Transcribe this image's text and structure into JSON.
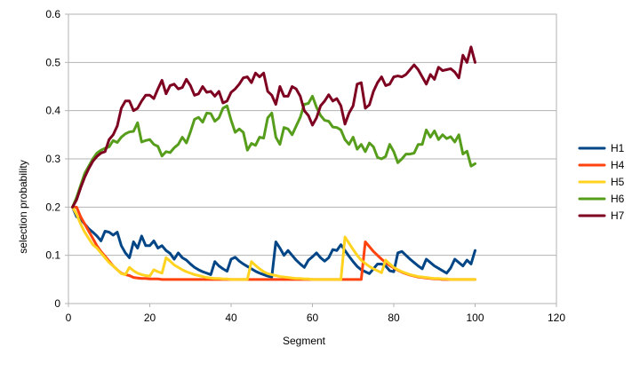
{
  "chart_data": {
    "type": "line",
    "title": "",
    "xlabel": "Segment",
    "ylabel": "selection probability",
    "xlim": [
      0,
      120
    ],
    "ylim": [
      0,
      0.6
    ],
    "xticks": [
      0,
      20,
      40,
      60,
      80,
      100,
      120
    ],
    "yticks": [
      0,
      0.1,
      0.2,
      0.3,
      0.4,
      0.5,
      0.6
    ],
    "xtick_labels": [
      "0",
      "20",
      "40",
      "60",
      "80",
      "100",
      "120"
    ],
    "ytick_labels": [
      "0",
      "0.1",
      "0.2",
      "0.3",
      "0.4",
      "0.5",
      "0.6"
    ],
    "grid": "horizontal",
    "legend_position": "right",
    "series": [
      {
        "name": "H1",
        "color": "#004586",
        "x": [
          1,
          2,
          3,
          4,
          5,
          6,
          7,
          8,
          9,
          10,
          11,
          12,
          13,
          14,
          15,
          16,
          17,
          18,
          19,
          20,
          21,
          22,
          23,
          24,
          25,
          26,
          27,
          28,
          29,
          30,
          31,
          32,
          33,
          34,
          35,
          36,
          37,
          38,
          39,
          40,
          41,
          42,
          43,
          44,
          45,
          46,
          47,
          48,
          49,
          50,
          51,
          52,
          53,
          54,
          55,
          56,
          57,
          58,
          59,
          60,
          61,
          62,
          63,
          64,
          65,
          66,
          67,
          68,
          69,
          70,
          71,
          72,
          73,
          74,
          75,
          76,
          77,
          78,
          79,
          80,
          81,
          82,
          83,
          84,
          85,
          86,
          87,
          88,
          89,
          90,
          91,
          92,
          93,
          94,
          95,
          96,
          97,
          98,
          99,
          100
        ],
        "values": [
          0.2,
          0.18,
          0.175,
          0.165,
          0.155,
          0.148,
          0.14,
          0.13,
          0.15,
          0.148,
          0.142,
          0.148,
          0.12,
          0.105,
          0.095,
          0.128,
          0.115,
          0.14,
          0.12,
          0.12,
          0.13,
          0.115,
          0.12,
          0.11,
          0.104,
          0.092,
          0.105,
          0.095,
          0.09,
          0.082,
          0.075,
          0.07,
          0.066,
          0.063,
          0.06,
          0.087,
          0.078,
          0.072,
          0.067,
          0.092,
          0.096,
          0.088,
          0.082,
          0.077,
          0.072,
          0.067,
          0.063,
          0.06,
          0.057,
          0.055,
          0.128,
          0.115,
          0.1,
          0.11,
          0.1,
          0.09,
          0.082,
          0.075,
          0.09,
          0.097,
          0.105,
          0.095,
          0.088,
          0.095,
          0.112,
          0.11,
          0.122,
          0.11,
          0.098,
          0.087,
          0.077,
          0.07,
          0.066,
          0.062,
          0.072,
          0.082,
          0.082,
          0.078,
          0.068,
          0.066,
          0.105,
          0.108,
          0.1,
          0.092,
          0.085,
          0.078,
          0.072,
          0.092,
          0.085,
          0.078,
          0.073,
          0.068,
          0.063,
          0.074,
          0.092,
          0.085,
          0.078,
          0.09,
          0.082,
          0.11
        ]
      },
      {
        "name": "H4",
        "color": "#ff420e",
        "x": [
          1,
          2,
          3,
          4,
          5,
          6,
          7,
          8,
          9,
          10,
          11,
          12,
          13,
          14,
          15,
          16,
          17,
          18,
          19,
          20,
          21,
          22,
          23,
          24,
          25,
          26,
          27,
          28,
          29,
          30,
          31,
          32,
          33,
          34,
          35,
          36,
          37,
          38,
          39,
          40,
          41,
          42,
          43,
          44,
          45,
          46,
          47,
          48,
          49,
          50,
          51,
          52,
          53,
          54,
          55,
          56,
          57,
          58,
          59,
          60,
          61,
          62,
          63,
          64,
          65,
          66,
          67,
          68,
          69,
          70,
          71,
          72,
          73,
          74,
          75,
          76,
          77,
          78,
          79,
          80,
          81,
          82,
          83,
          84,
          85,
          86,
          87,
          88,
          89,
          90,
          91,
          92,
          93,
          94,
          95,
          96,
          97,
          98,
          99,
          100
        ],
        "values": [
          0.2,
          0.2,
          0.18,
          0.165,
          0.15,
          0.135,
          0.12,
          0.108,
          0.098,
          0.088,
          0.078,
          0.07,
          0.063,
          0.06,
          0.058,
          0.054,
          0.053,
          0.052,
          0.052,
          0.051,
          0.051,
          0.051,
          0.05,
          0.05,
          0.05,
          0.05,
          0.05,
          0.05,
          0.05,
          0.05,
          0.05,
          0.05,
          0.05,
          0.05,
          0.05,
          0.05,
          0.05,
          0.05,
          0.05,
          0.05,
          0.05,
          0.05,
          0.05,
          0.05,
          0.05,
          0.05,
          0.05,
          0.05,
          0.05,
          0.05,
          0.05,
          0.05,
          0.05,
          0.05,
          0.05,
          0.05,
          0.05,
          0.05,
          0.05,
          0.05,
          0.05,
          0.05,
          0.05,
          0.05,
          0.05,
          0.05,
          0.05,
          0.05,
          0.05,
          0.05,
          0.05,
          0.05,
          0.128,
          0.118,
          0.108,
          0.1,
          0.092,
          0.085,
          0.079,
          0.074,
          0.069,
          0.065,
          0.062,
          0.059,
          0.057,
          0.055,
          0.054,
          0.053,
          0.052,
          0.051,
          0.051,
          0.05,
          0.05,
          0.05,
          0.05,
          0.05,
          0.05,
          0.05,
          0.05,
          0.05
        ]
      },
      {
        "name": "H5",
        "color": "#ffd320",
        "x": [
          1,
          2,
          3,
          4,
          5,
          6,
          7,
          8,
          9,
          10,
          11,
          12,
          13,
          14,
          15,
          16,
          17,
          18,
          19,
          20,
          21,
          22,
          23,
          24,
          25,
          26,
          27,
          28,
          29,
          30,
          31,
          32,
          33,
          34,
          35,
          36,
          37,
          38,
          39,
          40,
          41,
          42,
          43,
          44,
          45,
          46,
          47,
          48,
          49,
          50,
          51,
          52,
          53,
          54,
          55,
          56,
          57,
          58,
          59,
          60,
          61,
          62,
          63,
          64,
          65,
          66,
          67,
          68,
          69,
          70,
          71,
          72,
          73,
          74,
          75,
          76,
          77,
          78,
          79,
          80,
          81,
          82,
          83,
          84,
          85,
          86,
          87,
          88,
          89,
          90,
          91,
          92,
          93,
          94,
          95,
          96,
          97,
          98,
          99,
          100
        ],
        "values": [
          0.2,
          0.185,
          0.165,
          0.148,
          0.135,
          0.122,
          0.115,
          0.105,
          0.095,
          0.085,
          0.078,
          0.07,
          0.062,
          0.06,
          0.075,
          0.068,
          0.063,
          0.06,
          0.058,
          0.057,
          0.07,
          0.066,
          0.063,
          0.095,
          0.088,
          0.08,
          0.075,
          0.07,
          0.066,
          0.063,
          0.06,
          0.058,
          0.056,
          0.054,
          0.053,
          0.052,
          0.052,
          0.051,
          0.051,
          0.05,
          0.05,
          0.05,
          0.05,
          0.05,
          0.087,
          0.079,
          0.072,
          0.066,
          0.062,
          0.06,
          0.058,
          0.056,
          0.055,
          0.054,
          0.053,
          0.052,
          0.052,
          0.051,
          0.051,
          0.05,
          0.05,
          0.05,
          0.05,
          0.05,
          0.05,
          0.05,
          0.05,
          0.138,
          0.125,
          0.112,
          0.1,
          0.09,
          0.083,
          0.077,
          0.072,
          0.068,
          0.064,
          0.09,
          0.082,
          0.075,
          0.07,
          0.066,
          0.063,
          0.06,
          0.058,
          0.056,
          0.055,
          0.054,
          0.053,
          0.052,
          0.052,
          0.051,
          0.051,
          0.05,
          0.05,
          0.05,
          0.05,
          0.05,
          0.05,
          0.05
        ]
      },
      {
        "name": "H6",
        "color": "#579d1c",
        "x": [
          1,
          2,
          3,
          4,
          5,
          6,
          7,
          8,
          9,
          10,
          11,
          12,
          13,
          14,
          15,
          16,
          17,
          18,
          19,
          20,
          21,
          22,
          23,
          24,
          25,
          26,
          27,
          28,
          29,
          30,
          31,
          32,
          33,
          34,
          35,
          36,
          37,
          38,
          39,
          40,
          41,
          42,
          43,
          44,
          45,
          46,
          47,
          48,
          49,
          50,
          51,
          52,
          53,
          54,
          55,
          56,
          57,
          58,
          59,
          60,
          61,
          62,
          63,
          64,
          65,
          66,
          67,
          68,
          69,
          70,
          71,
          72,
          73,
          74,
          75,
          76,
          77,
          78,
          79,
          80,
          81,
          82,
          83,
          84,
          85,
          86,
          87,
          88,
          89,
          90,
          91,
          92,
          93,
          94,
          95,
          96,
          97,
          98,
          99,
          100
        ],
        "values": [
          0.2,
          0.22,
          0.245,
          0.27,
          0.285,
          0.3,
          0.312,
          0.318,
          0.322,
          0.325,
          0.338,
          0.334,
          0.345,
          0.352,
          0.356,
          0.357,
          0.375,
          0.335,
          0.338,
          0.34,
          0.33,
          0.326,
          0.306,
          0.315,
          0.313,
          0.323,
          0.33,
          0.345,
          0.333,
          0.356,
          0.382,
          0.386,
          0.376,
          0.395,
          0.394,
          0.378,
          0.385,
          0.405,
          0.41,
          0.38,
          0.355,
          0.362,
          0.355,
          0.318,
          0.332,
          0.328,
          0.345,
          0.343,
          0.385,
          0.395,
          0.345,
          0.33,
          0.365,
          0.362,
          0.35,
          0.368,
          0.386,
          0.413,
          0.415,
          0.43,
          0.407,
          0.39,
          0.38,
          0.378,
          0.366,
          0.365,
          0.36,
          0.34,
          0.33,
          0.345,
          0.32,
          0.33,
          0.315,
          0.333,
          0.325,
          0.303,
          0.3,
          0.305,
          0.33,
          0.315,
          0.292,
          0.3,
          0.31,
          0.31,
          0.312,
          0.33,
          0.33,
          0.36,
          0.345,
          0.358,
          0.34,
          0.35,
          0.342,
          0.346,
          0.335,
          0.35,
          0.31,
          0.316,
          0.285,
          0.29
        ]
      },
      {
        "name": "H7",
        "color": "#7e0021",
        "x": [
          1,
          2,
          3,
          4,
          5,
          6,
          7,
          8,
          9,
          10,
          11,
          12,
          13,
          14,
          15,
          16,
          17,
          18,
          19,
          20,
          21,
          22,
          23,
          24,
          25,
          26,
          27,
          28,
          29,
          30,
          31,
          32,
          33,
          34,
          35,
          36,
          37,
          38,
          39,
          40,
          41,
          42,
          43,
          44,
          45,
          46,
          47,
          48,
          49,
          50,
          51,
          52,
          53,
          54,
          55,
          56,
          57,
          58,
          59,
          60,
          61,
          62,
          63,
          64,
          65,
          66,
          67,
          68,
          69,
          70,
          71,
          72,
          73,
          74,
          75,
          76,
          77,
          78,
          79,
          80,
          81,
          82,
          83,
          84,
          85,
          86,
          87,
          88,
          89,
          90,
          91,
          92,
          93,
          94,
          95,
          96,
          97,
          98,
          99,
          100
        ],
        "values": [
          0.2,
          0.215,
          0.24,
          0.262,
          0.28,
          0.295,
          0.305,
          0.312,
          0.315,
          0.34,
          0.35,
          0.368,
          0.405,
          0.42,
          0.42,
          0.4,
          0.405,
          0.42,
          0.432,
          0.432,
          0.425,
          0.445,
          0.463,
          0.435,
          0.452,
          0.455,
          0.445,
          0.448,
          0.465,
          0.452,
          0.432,
          0.435,
          0.45,
          0.438,
          0.44,
          0.43,
          0.44,
          0.416,
          0.42,
          0.438,
          0.445,
          0.455,
          0.468,
          0.47,
          0.458,
          0.478,
          0.47,
          0.478,
          0.44,
          0.432,
          0.413,
          0.45,
          0.43,
          0.43,
          0.45,
          0.445,
          0.43,
          0.4,
          0.39,
          0.37,
          0.385,
          0.41,
          0.42,
          0.433,
          0.42,
          0.425,
          0.41,
          0.372,
          0.395,
          0.41,
          0.455,
          0.458,
          0.405,
          0.412,
          0.44,
          0.458,
          0.47,
          0.452,
          0.455,
          0.47,
          0.472,
          0.47,
          0.475,
          0.485,
          0.495,
          0.485,
          0.47,
          0.455,
          0.475,
          0.465,
          0.49,
          0.483,
          0.485,
          0.487,
          0.48,
          0.468,
          0.515,
          0.5,
          0.532,
          0.5
        ]
      }
    ]
  }
}
